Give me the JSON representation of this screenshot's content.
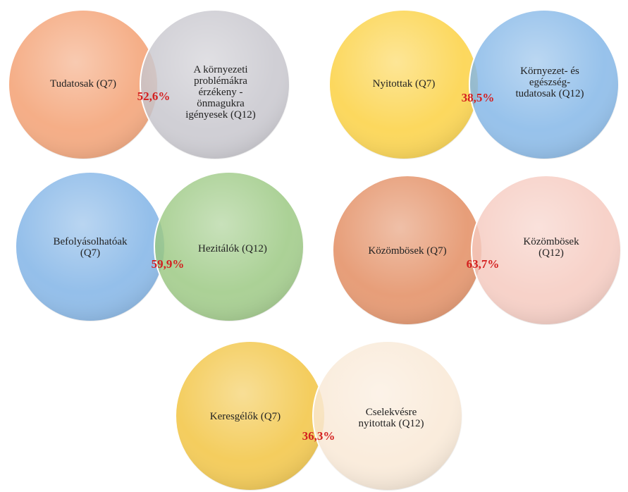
{
  "pairs": [
    {
      "left": {
        "lines": [
          "Tudatosak (Q7)"
        ]
      },
      "right": {
        "lines": [
          "A környezeti",
          "problémákra",
          "érzékeny -",
          "önmagukra",
          "igényesek (Q12)"
        ]
      },
      "overlap": "52,6%"
    },
    {
      "left": {
        "lines": [
          "Nyitottak (Q7)"
        ]
      },
      "right": {
        "lines": [
          "Környezet- és",
          "egészség-",
          "tudatosak (Q12)"
        ]
      },
      "overlap": "38,5%"
    },
    {
      "left": {
        "lines": [
          "Befolyásolhatóak",
          "(Q7)"
        ]
      },
      "right": {
        "lines": [
          "Hezitálók (Q12)"
        ]
      },
      "overlap": "59,9%"
    },
    {
      "left": {
        "lines": [
          "Közömbösek (Q7)"
        ]
      },
      "right": {
        "lines": [
          "Közömbösek",
          "(Q12)"
        ]
      },
      "overlap": "63,7%"
    },
    {
      "left": {
        "lines": [
          "Keresgélők (Q7)"
        ]
      },
      "right": {
        "lines": [
          "Cselekvésre",
          "nyitottak (Q12)"
        ]
      },
      "overlap": "36,3%"
    }
  ]
}
